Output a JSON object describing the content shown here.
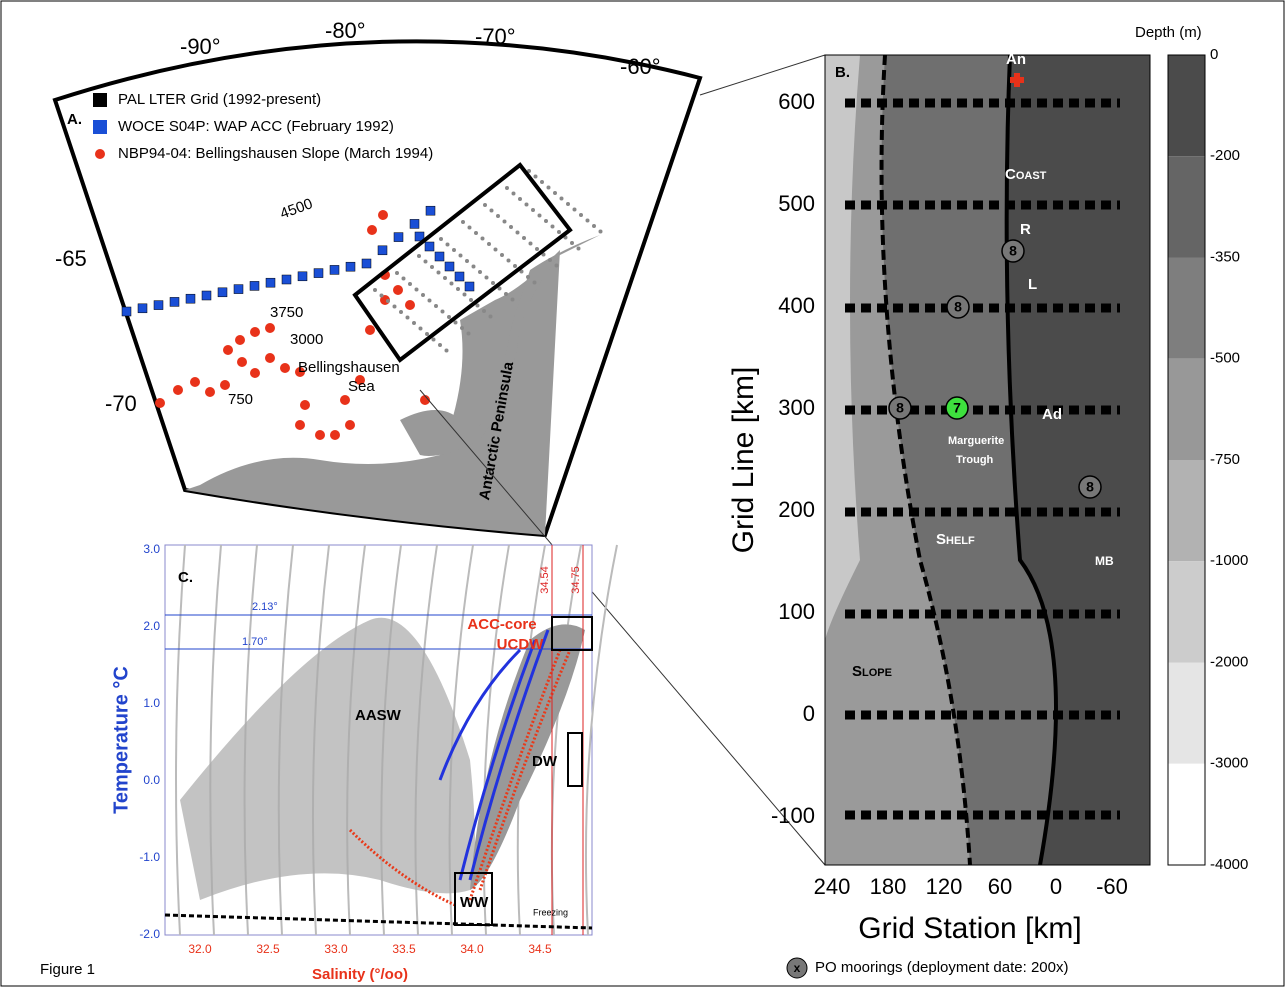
{
  "figure_label": "Figure 1",
  "panel_a": {
    "label": "A.",
    "legend": [
      "PAL LTER Grid (1992-present)",
      "WOCE S04P: WAP ACC (February 1992)",
      "NBP94-04:  Bellingshausen Slope (March 1994)"
    ],
    "longitudes": [
      "-90°",
      "-80°",
      "-70°",
      "-60°"
    ],
    "latitudes": [
      "-65",
      "-70"
    ],
    "contours": [
      "4500",
      "3750",
      "3000",
      "750"
    ],
    "places": [
      "Bellingshausen",
      "Sea",
      "Antarctic Peninsula"
    ]
  },
  "panel_b": {
    "label": "B.",
    "y_label": "Grid Line [km]",
    "x_label": "Grid Station [km]",
    "yticks": [
      "600",
      "500",
      "400",
      "300",
      "200",
      "100",
      "0",
      "-100"
    ],
    "xticks": [
      "240",
      "180",
      "120",
      "60",
      "0",
      "-60"
    ],
    "colorbar_title": "Depth (m)",
    "colorbar_ticks": [
      "0",
      "-200",
      "-350",
      "-500",
      "-750",
      "-1000",
      "-2000",
      "-3000",
      "-4000"
    ],
    "annotations": [
      "An",
      "Coast",
      "R",
      "L",
      "Ad",
      "Marguerite",
      "Trough",
      "Shelf",
      "MB",
      "Slope"
    ],
    "moorings": [
      "8",
      "8",
      "8",
      "7",
      "8"
    ],
    "mooring_legend": {
      "icon": "x",
      "text": "PO moorings (deployment date: 200x)"
    }
  },
  "panel_c": {
    "label": "C.",
    "y_label": "Temperature  °C",
    "x_label": "Salinity (°/oo)",
    "yticks": [
      "3.0",
      "2.0",
      "1.0",
      "0.0",
      "-1.0",
      "-2.0"
    ],
    "xticks": [
      "32.0",
      "32.5",
      "33.0",
      "33.5",
      "34.0",
      "34.5"
    ],
    "annotations": [
      "2.13°",
      "1.70°",
      "34.54",
      "34.75",
      "ACC-core",
      "UCDW",
      "AASW",
      "DW",
      "WW",
      "Freezing"
    ]
  }
}
